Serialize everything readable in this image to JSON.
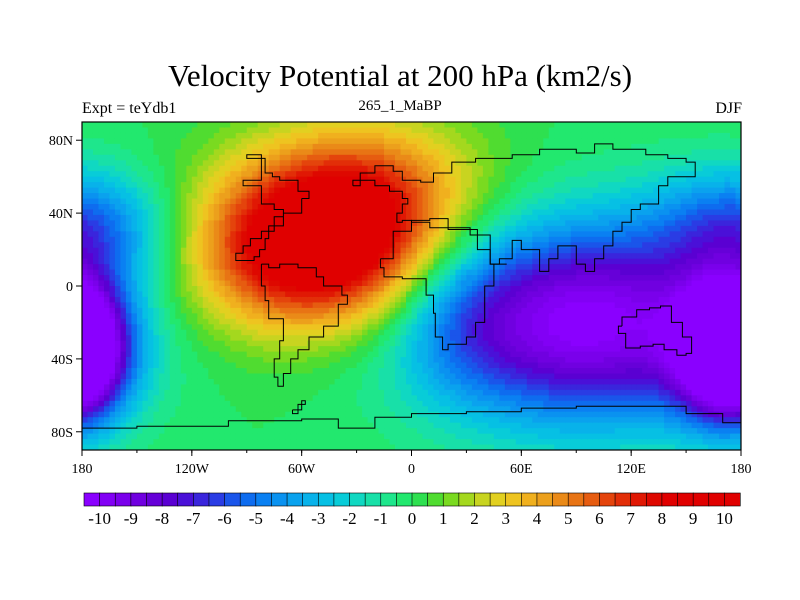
{
  "header": {
    "title": "Velocity Potential at 200 hPa (km2/s)",
    "left_label": "Expt = teYdb1",
    "center_label": "265_1_MaBP",
    "right_label": "DJF"
  },
  "chart_data": {
    "type": "heatmap",
    "title": "Velocity Potential at 200 hPa (km2/s)",
    "xlabel": "",
    "ylabel": "",
    "xlim": [
      -180,
      180
    ],
    "ylim": [
      -90,
      90
    ],
    "x_ticks": [
      {
        "value": -180,
        "label": "180"
      },
      {
        "value": -120,
        "label": "120W"
      },
      {
        "value": -60,
        "label": "60W"
      },
      {
        "value": 0,
        "label": "0"
      },
      {
        "value": 60,
        "label": "60E"
      },
      {
        "value": 120,
        "label": "120E"
      },
      {
        "value": 180,
        "label": "180"
      }
    ],
    "y_ticks": [
      {
        "value": 80,
        "label": "80N"
      },
      {
        "value": 40,
        "label": "40N"
      },
      {
        "value": 0,
        "label": "0"
      },
      {
        "value": -40,
        "label": "40S"
      },
      {
        "value": -80,
        "label": "80S"
      }
    ],
    "field_centers": [
      {
        "lon": -52,
        "lat": 20,
        "value": 10.5,
        "sx": 45,
        "sy": 30
      },
      {
        "lon": -25,
        "lat": 55,
        "value": 4.5,
        "sx": 45,
        "sy": 28
      },
      {
        "lon": 95,
        "lat": -20,
        "value": -10.5,
        "sx": 60,
        "sy": 38
      },
      {
        "lon": -185,
        "lat": -35,
        "value": -10,
        "sx": 22,
        "sy": 26
      },
      {
        "lon": 175,
        "lat": -35,
        "value": -7,
        "sx": 16,
        "sy": 24
      },
      {
        "lon": -165,
        "lat": 30,
        "value": -2.5,
        "sx": 30,
        "sy": 22
      },
      {
        "lon": 170,
        "lat": 35,
        "value": -3,
        "sx": 30,
        "sy": 22
      },
      {
        "lon": 25,
        "lat": -15,
        "value": -1.5,
        "sx": 25,
        "sy": 30
      }
    ],
    "colorbar": {
      "min": -10.5,
      "max": 10.5,
      "step": 0.5,
      "tick_labels": [
        "-10",
        "-9",
        "-8",
        "-7",
        "-6",
        "-5",
        "-4",
        "-3",
        "-2",
        "-1",
        "0",
        "1",
        "2",
        "3",
        "4",
        "5",
        "6",
        "7",
        "8",
        "9",
        "10"
      ],
      "colors": [
        "#8a00ff",
        "#8200f5",
        "#7a00eb",
        "#7000e0",
        "#6600d8",
        "#5a00d2",
        "#4a10d8",
        "#3a25dc",
        "#2a3ce4",
        "#1a55ea",
        "#0e6cef",
        "#0a80f2",
        "#0a92f0",
        "#0aa2ee",
        "#08b2ea",
        "#06c0e4",
        "#08ccd8",
        "#10d8c2",
        "#18e0a8",
        "#1ee68c",
        "#22e86e",
        "#2ee050",
        "#50dc30",
        "#7ada20",
        "#a4d81e",
        "#c8d420",
        "#e2d020",
        "#eec420",
        "#f0b01e",
        "#eca01c",
        "#ea8a18",
        "#e87414",
        "#e65c10",
        "#e4440c",
        "#e22e08",
        "#e01804",
        "#de0800",
        "#e00000",
        "#e00000",
        "#e00000",
        "#e00000",
        "#e00000"
      ]
    }
  }
}
